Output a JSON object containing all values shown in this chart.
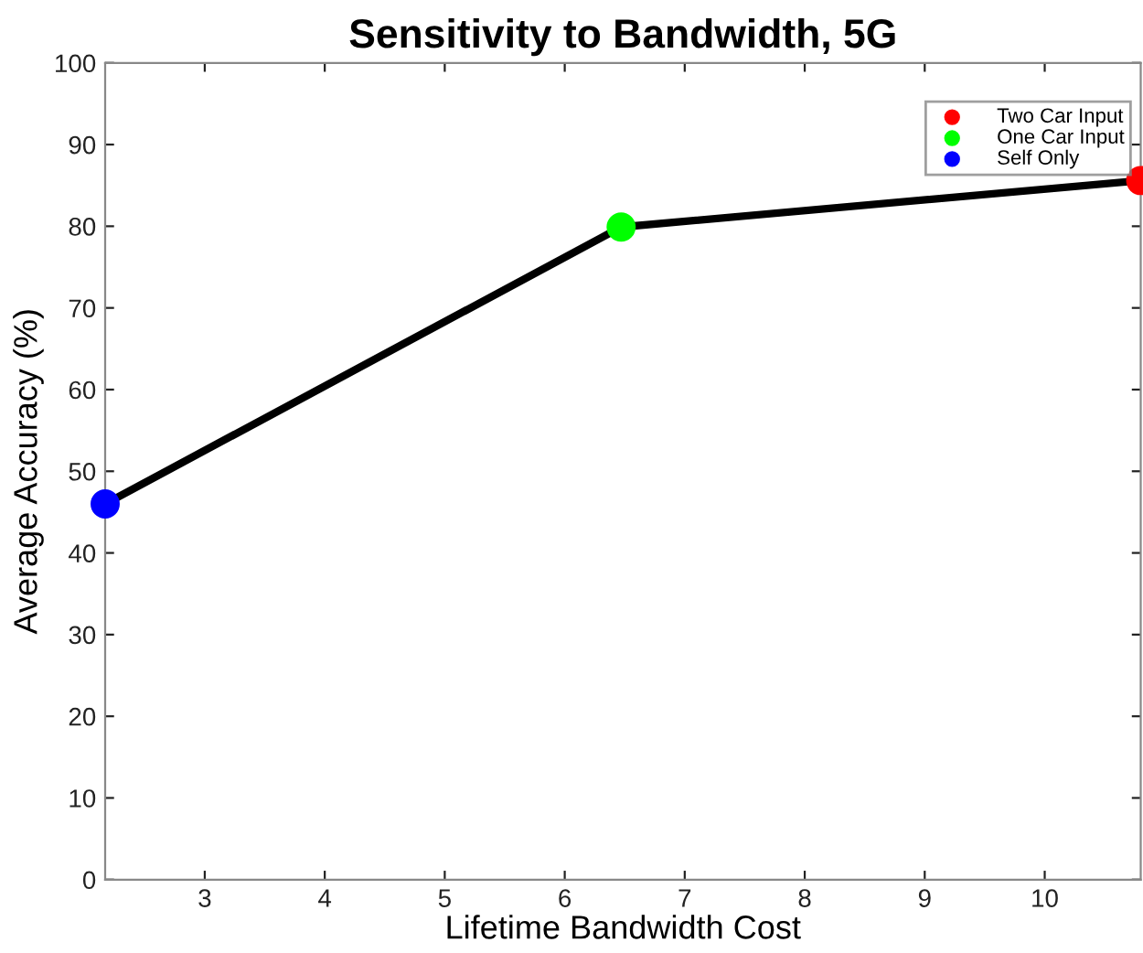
{
  "chart_data": {
    "type": "line",
    "title": "Sensitivity to Bandwidth, 5G",
    "xlabel": "Lifetime Bandwidth Cost",
    "ylabel": "Average Accuracy (%)",
    "x": [
      2.17,
      6.47,
      10.8
    ],
    "series": [
      {
        "color": "#000000",
        "values": [
          46,
          79.9,
          85.6
        ],
        "line_style": "solid"
      },
      {
        "type": "scatter",
        "name": "Two Car Input",
        "color": "#ff0000",
        "x": [
          10.8
        ],
        "values": [
          85.6
        ],
        "marker": "circle"
      },
      {
        "type": "scatter",
        "name": "One Car Input",
        "color": "#00ff00",
        "x": [
          6.47
        ],
        "values": [
          79.9
        ],
        "marker": "circle"
      },
      {
        "type": "scatter",
        "name": "Self Only",
        "color": "#0000ff",
        "x": [
          2.17
        ],
        "values": [
          46
        ],
        "marker": "circle"
      }
    ],
    "xlim": [
      2.17,
      10.8
    ],
    "xticks": [
      3,
      4,
      5,
      6,
      7,
      8,
      9,
      10
    ],
    "ylim": [
      0,
      100
    ],
    "yticks": [
      0,
      10,
      20,
      30,
      40,
      50,
      60,
      70,
      80,
      90,
      100
    ],
    "grid": false,
    "legend": "top right"
  }
}
